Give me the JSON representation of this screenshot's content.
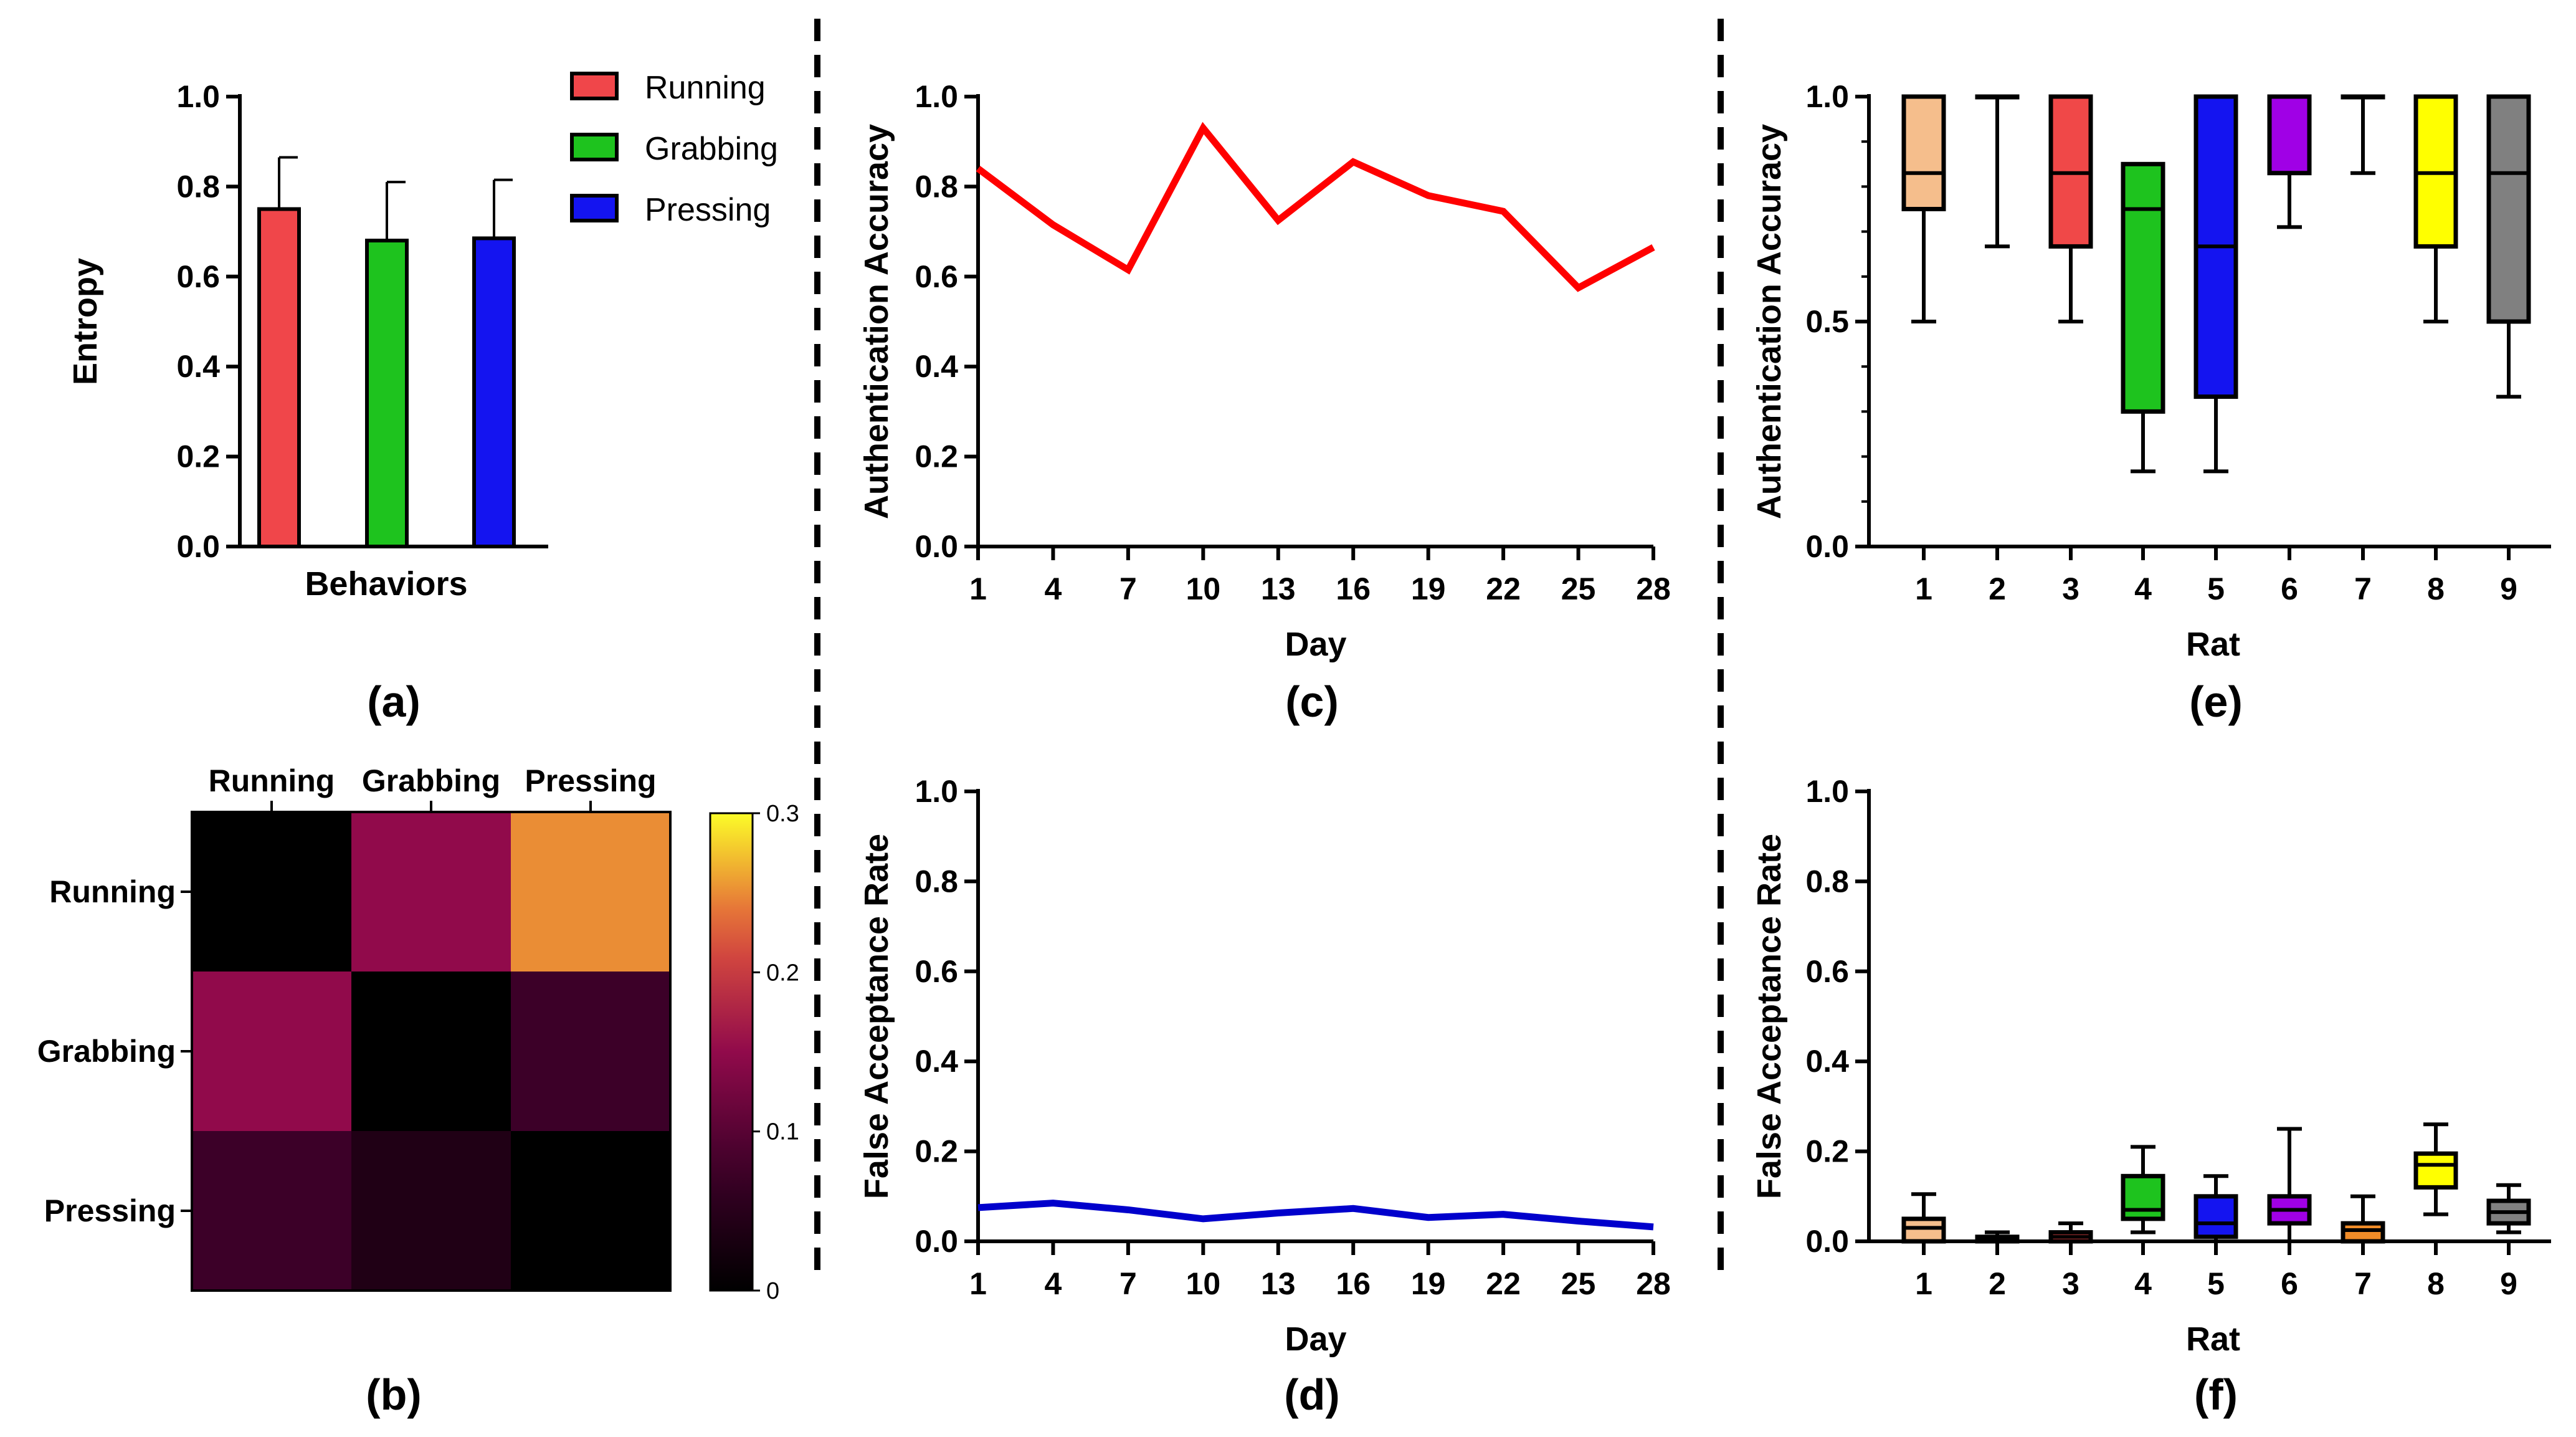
{
  "chart_data": [
    {
      "id": "a",
      "type": "bar",
      "panel_label": "(a)",
      "xlabel": "Behaviors",
      "ylabel": "Entropy",
      "ylim": [
        0,
        1
      ],
      "yticks": [
        "0.0",
        "0.2",
        "0.4",
        "0.6",
        "0.8",
        "1.0"
      ],
      "categories": [
        "Running",
        "Grabbing",
        "Pressing"
      ],
      "values": [
        0.75,
        0.68,
        0.685
      ],
      "errors": [
        0.115,
        0.13,
        0.13
      ],
      "colors": [
        "#f0464a",
        "#1ec31e",
        "#1414f0"
      ],
      "legend": [
        "Running",
        "Grabbing",
        "Pressing"
      ]
    },
    {
      "id": "b",
      "type": "heatmap",
      "panel_label": "(b)",
      "rows": [
        "Running",
        "Grabbing",
        "Pressing"
      ],
      "cols": [
        "Running",
        "Grabbing",
        "Pressing"
      ],
      "matrix": [
        [
          0.0,
          0.15,
          0.25
        ],
        [
          0.15,
          0.0,
          0.075
        ],
        [
          0.075,
          0.04,
          0.0
        ]
      ],
      "colorbar_ticks": [
        "0",
        "0.1",
        "0.2",
        "0.3"
      ],
      "vlim": [
        0,
        0.3
      ]
    },
    {
      "id": "c",
      "type": "line",
      "panel_label": "(c)",
      "xlabel": "Day",
      "ylabel": "Authentication Accuracy",
      "ylim": [
        0,
        1
      ],
      "yticks": [
        "0.0",
        "0.2",
        "0.4",
        "0.6",
        "0.8",
        "1.0"
      ],
      "x": [
        "1",
        "4",
        "7",
        "10",
        "13",
        "16",
        "19",
        "22",
        "25",
        "28"
      ],
      "values": [
        0.84,
        0.715,
        0.615,
        0.93,
        0.725,
        0.855,
        0.78,
        0.745,
        0.575,
        0.665
      ],
      "color": "#ff0000"
    },
    {
      "id": "d",
      "type": "line",
      "panel_label": "(d)",
      "xlabel": "Day",
      "ylabel": "False Acceptance Rate",
      "ylim": [
        0,
        1
      ],
      "yticks": [
        "0.0",
        "0.2",
        "0.4",
        "0.6",
        "0.8",
        "1.0"
      ],
      "x": [
        "1",
        "4",
        "7",
        "10",
        "13",
        "16",
        "19",
        "22",
        "25",
        "28"
      ],
      "values": [
        0.075,
        0.085,
        0.07,
        0.05,
        0.063,
        0.073,
        0.053,
        0.06,
        0.045,
        0.032
      ],
      "color": "#0000cc"
    },
    {
      "id": "e",
      "type": "box",
      "panel_label": "(e)",
      "xlabel": "Rat",
      "ylabel": "Authentication Accuracy",
      "ylim": [
        0,
        1
      ],
      "yticks": [
        "0.0",
        "0.5",
        "1.0"
      ],
      "categories": [
        "1",
        "2",
        "3",
        "4",
        "5",
        "6",
        "7",
        "8",
        "9"
      ],
      "boxes": [
        {
          "min": 0.5,
          "q1": 0.75,
          "median": 0.83,
          "q3": 1.0,
          "max": 1.0,
          "color": "#f5be8c"
        },
        {
          "min": 0.667,
          "q1": 1.0,
          "median": 1.0,
          "q3": 1.0,
          "max": 1.0,
          "color": "#ffffff"
        },
        {
          "min": 0.5,
          "q1": 0.667,
          "median": 0.83,
          "q3": 1.0,
          "max": 1.0,
          "color": "#f04848"
        },
        {
          "min": 0.167,
          "q1": 0.3,
          "median": 0.75,
          "q3": 0.85,
          "max": 0.85,
          "color": "#1ec31e"
        },
        {
          "min": 0.167,
          "q1": 0.333,
          "median": 0.667,
          "q3": 1.0,
          "max": 1.0,
          "color": "#1414f0"
        },
        {
          "min": 0.71,
          "q1": 0.83,
          "median": 0.83,
          "q3": 1.0,
          "max": 1.0,
          "color": "#a000e6"
        },
        {
          "min": 0.83,
          "q1": 1.0,
          "median": 1.0,
          "q3": 1.0,
          "max": 1.0,
          "color": "#ffffff"
        },
        {
          "min": 0.5,
          "q1": 0.667,
          "median": 0.83,
          "q3": 1.0,
          "max": 1.0,
          "color": "#ffff00"
        },
        {
          "min": 0.333,
          "q1": 0.5,
          "median": 0.83,
          "q3": 1.0,
          "max": 1.0,
          "color": "#808080"
        }
      ]
    },
    {
      "id": "f",
      "type": "box",
      "panel_label": "(f)",
      "xlabel": "Rat",
      "ylabel": "False Acceptance Rate",
      "ylim": [
        0,
        1
      ],
      "yticks": [
        "0.0",
        "0.2",
        "0.4",
        "0.6",
        "0.8",
        "1.0"
      ],
      "categories": [
        "1",
        "2",
        "3",
        "4",
        "5",
        "6",
        "7",
        "8",
        "9"
      ],
      "boxes": [
        {
          "min": 0.0,
          "q1": 0.0,
          "median": 0.03,
          "q3": 0.05,
          "max": 0.105,
          "color": "#f5be8c"
        },
        {
          "min": 0.0,
          "q1": 0.0,
          "median": 0.005,
          "q3": 0.01,
          "max": 0.02,
          "color": "#ffffff"
        },
        {
          "min": 0.0,
          "q1": 0.0,
          "median": 0.01,
          "q3": 0.02,
          "max": 0.04,
          "color": "#f04848"
        },
        {
          "min": 0.02,
          "q1": 0.05,
          "median": 0.07,
          "q3": 0.145,
          "max": 0.21,
          "color": "#1ec31e"
        },
        {
          "min": 0.0,
          "q1": 0.01,
          "median": 0.04,
          "q3": 0.1,
          "max": 0.145,
          "color": "#1414f0"
        },
        {
          "min": 0.0,
          "q1": 0.04,
          "median": 0.07,
          "q3": 0.1,
          "max": 0.25,
          "color": "#a000e6"
        },
        {
          "min": 0.0,
          "q1": 0.0,
          "median": 0.025,
          "q3": 0.04,
          "max": 0.1,
          "color": "#f08c28"
        },
        {
          "min": 0.06,
          "q1": 0.12,
          "median": 0.17,
          "q3": 0.195,
          "max": 0.26,
          "color": "#ffff00"
        },
        {
          "min": 0.02,
          "q1": 0.04,
          "median": 0.065,
          "q3": 0.09,
          "max": 0.125,
          "color": "#808080"
        }
      ]
    }
  ]
}
